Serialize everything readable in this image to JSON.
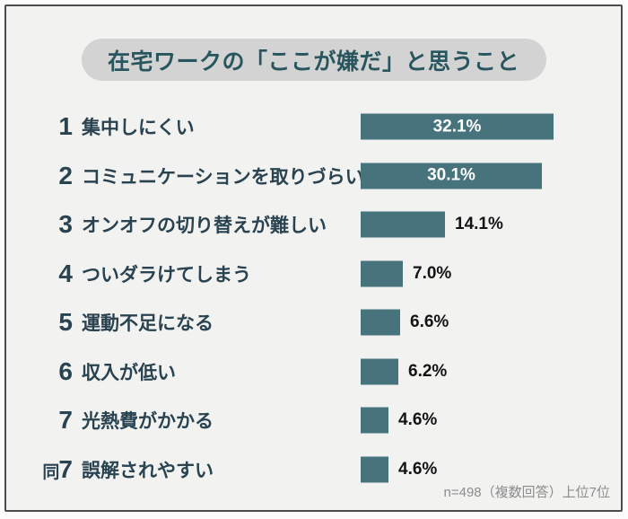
{
  "header": {
    "title": "在宅ワークの「ここが嫌だ」と思うこと"
  },
  "footnote": {
    "text": "n=498（複数回答）上位7位"
  },
  "colors": {
    "panel_bg": "#f2f2f1",
    "frame_border": "#4c4c4c",
    "pill_bg": "#d3d3d3",
    "title_text": "#29565e",
    "row_text": "#2a4350",
    "bar_fill": "#46737c",
    "value_inside_text": "#ffffff",
    "value_outside_text": "#131313",
    "footnote_text": "#8c8c8c"
  },
  "chart_data": {
    "type": "bar",
    "orientation": "horizontal",
    "title": "在宅ワークの「ここが嫌だ」と思うこと",
    "note": "n=498（複数回答）上位7位",
    "xlim": [
      0,
      35
    ],
    "grid": false,
    "legend": false,
    "categories": [
      "集中しにくい",
      "コミュニケーションを取りづらい",
      "オンオフの切り替えが難しい",
      "ついダラけてしまう",
      "運動不足になる",
      "収入が低い",
      "光熱費がかかる",
      "誤解されやすい"
    ],
    "values": [
      32.1,
      30.1,
      14.1,
      7.0,
      6.6,
      6.2,
      4.6,
      4.6
    ],
    "rows": [
      {
        "rank_prefix": "",
        "rank": "1",
        "label": "集中しにくい",
        "value": 32.1,
        "value_label": "32.1%"
      },
      {
        "rank_prefix": "",
        "rank": "2",
        "label": "コミュニケーションを取りづらい",
        "value": 30.1,
        "value_label": "30.1%"
      },
      {
        "rank_prefix": "",
        "rank": "3",
        "label": "オンオフの切り替えが難しい",
        "value": 14.1,
        "value_label": "14.1%"
      },
      {
        "rank_prefix": "",
        "rank": "4",
        "label": "ついダラけてしまう",
        "value": 7.0,
        "value_label": "7.0%"
      },
      {
        "rank_prefix": "",
        "rank": "5",
        "label": "運動不足になる",
        "value": 6.6,
        "value_label": "6.6%"
      },
      {
        "rank_prefix": "",
        "rank": "6",
        "label": "収入が低い",
        "value": 6.2,
        "value_label": "6.2%"
      },
      {
        "rank_prefix": "",
        "rank": "7",
        "label": "光熱費がかかる",
        "value": 4.6,
        "value_label": "4.6%"
      },
      {
        "rank_prefix": "同",
        "rank": "7",
        "label": "誤解されやすい",
        "value": 4.6,
        "value_label": "4.6%"
      }
    ]
  }
}
